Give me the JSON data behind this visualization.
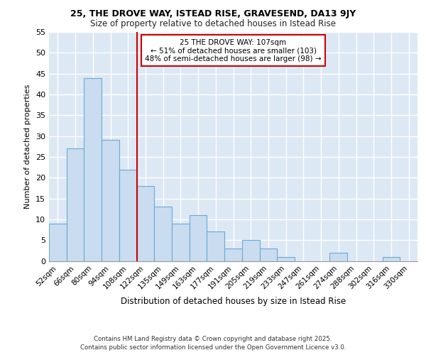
{
  "title": "25, THE DROVE WAY, ISTEAD RISE, GRAVESEND, DA13 9JY",
  "subtitle": "Size of property relative to detached houses in Istead Rise",
  "xlabel": "Distribution of detached houses by size in Istead Rise",
  "ylabel": "Number of detached properties",
  "bar_labels": [
    "52sqm",
    "66sqm",
    "80sqm",
    "94sqm",
    "108sqm",
    "122sqm",
    "135sqm",
    "149sqm",
    "163sqm",
    "177sqm",
    "191sqm",
    "205sqm",
    "219sqm",
    "233sqm",
    "247sqm",
    "261sqm",
    "274sqm",
    "288sqm",
    "302sqm",
    "316sqm",
    "330sqm"
  ],
  "bar_values": [
    9,
    27,
    44,
    29,
    22,
    18,
    13,
    9,
    11,
    7,
    3,
    5,
    3,
    1,
    0,
    0,
    2,
    0,
    0,
    1,
    0
  ],
  "bar_color": "#c9dcf0",
  "bar_edge_color": "#6aaad4",
  "annotation_text": "25 THE DROVE WAY: 107sqm\n← 51% of detached houses are smaller (103)\n48% of semi-detached houses are larger (98) →",
  "vline_x": 4,
  "vline_color": "#cc0000",
  "annotation_box_edge_color": "#cc0000",
  "plot_bg_color": "#dde8f5",
  "grid_color": "#ffffff",
  "fig_bg_color": "#ffffff",
  "ylim": [
    0,
    55
  ],
  "yticks": [
    0,
    5,
    10,
    15,
    20,
    25,
    30,
    35,
    40,
    45,
    50,
    55
  ],
  "footer_line1": "Contains HM Land Registry data © Crown copyright and database right 2025.",
  "footer_line2": "Contains public sector information licensed under the Open Government Licence v3.0."
}
